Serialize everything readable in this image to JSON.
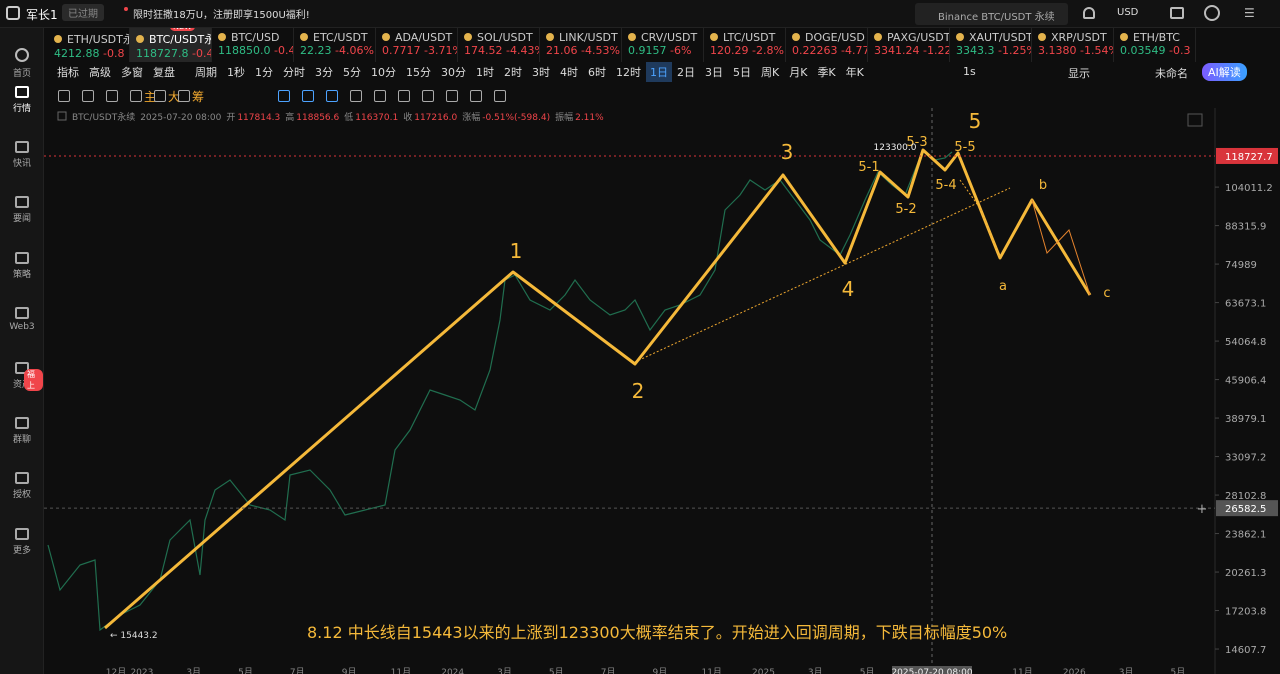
{
  "header": {
    "user": "军长1",
    "status": "已过期",
    "promo": "限时狂撒18万U，注册即享1500U福利!",
    "search": "Binance BTC/USDT 永续",
    "currency": "USD"
  },
  "tickers": [
    {
      "name": "ETH/USDT永",
      "price": "4212.88",
      "change": "-0.8",
      "up": true
    },
    {
      "name": "BTC/USDT永续",
      "price": "118727.8",
      "change": "-0.44%",
      "up": true
    },
    {
      "name": "BTC/USD",
      "price": "118850.0",
      "change": "-0.4",
      "up": true
    },
    {
      "name": "ETC/USDT",
      "price": "22.23",
      "change": "-4.06%",
      "up": true
    },
    {
      "name": "ADA/USDT",
      "price": "0.7717",
      "change": "-3.71%",
      "up": false
    },
    {
      "name": "SOL/USDT",
      "price": "174.52",
      "change": "-4.43%",
      "up": false
    },
    {
      "name": "LINK/USDT",
      "price": "21.06",
      "change": "-4.53%",
      "up": false
    },
    {
      "name": "CRV/USDT",
      "price": "0.9157",
      "change": "-6%",
      "up": true
    },
    {
      "name": "LTC/USDT",
      "price": "120.29",
      "change": "-2.8%",
      "up": false
    },
    {
      "name": "DOGE/USD",
      "price": "0.22263",
      "change": "-4.77",
      "up": false
    },
    {
      "name": "PAXG/USDT",
      "price": "3341.24",
      "change": "-1.22",
      "up": false
    },
    {
      "name": "XAUT/USDT",
      "price": "3343.3",
      "change": "-1.25%",
      "up": true
    },
    {
      "name": "XRP/USDT",
      "price": "3.1380",
      "change": "-1.54%",
      "up": false
    },
    {
      "name": "ETH/BTC",
      "price": "0.03549",
      "change": "-0.3",
      "up": true
    }
  ],
  "active_ticker": 1,
  "new_badge": "NEW",
  "toolbar": {
    "left": [
      "指标",
      "高级",
      "多窗",
      "复盘"
    ],
    "period_label": "周期",
    "periods": [
      "1秒",
      "1分",
      "分时",
      "3分",
      "5分",
      "10分",
      "15分",
      "30分",
      "1时",
      "2时",
      "3时",
      "4时",
      "6时",
      "12时",
      "1日",
      "2日",
      "3日",
      "5日",
      "周K",
      "月K",
      "季K",
      "年K"
    ],
    "active_period": 14,
    "right": [
      "1s",
      "显示",
      "未命名",
      "AI解读"
    ]
  },
  "draw_tools": [
    "主",
    "大",
    "筹"
  ],
  "sidebar": {
    "items": [
      "首页",
      "行情",
      "快讯",
      "要闻",
      "策略",
      "Web3",
      "资产",
      "群聊",
      "授权",
      "更多"
    ],
    "active": 1,
    "badge": "福上"
  },
  "info": [
    "BTC/USDT永续",
    "2025-07-20 08:00",
    "开",
    "117814.3",
    "高",
    "118856.6",
    "低",
    "116370.1",
    "收",
    "117216.0",
    "涨幅",
    "-0.51%(-598.4)",
    "振幅",
    "2.11%"
  ],
  "price_axis": {
    "ylim": [
      13650,
      141300
    ],
    "log": true,
    "ticks": [
      104011.2,
      88315.9,
      74989.0,
      63673.1,
      54064.8,
      45906.4,
      38979.1,
      33097.2,
      28102.8,
      23862.1,
      20261.3,
      17203.8,
      14607.7
    ]
  },
  "last_price": 118727.7,
  "cross_price": 26582.5,
  "cross_time": "2025-07-20 08:00",
  "time_axis": [
    "12月",
    "2023",
    null,
    "3月",
    null,
    "5月",
    null,
    "7月",
    null,
    "9月",
    null,
    "11月",
    null,
    "2024",
    null,
    "3月",
    null,
    "5月",
    null,
    "7月",
    null,
    "9月",
    null,
    "11月",
    null,
    "2025",
    null,
    "3月",
    null,
    "5月",
    null,
    null,
    null,
    null,
    null,
    "11月",
    null,
    "2026",
    null,
    "3月",
    null,
    "5月"
  ],
  "waves": [
    "1",
    "2",
    "3",
    "4",
    "5",
    "5-1",
    "5-2",
    "5-3",
    "5-4",
    "5-5",
    "a",
    "b",
    "c"
  ],
  "peak_label": "123300.0",
  "low_label": "← 15443.2",
  "note": "8.12 中长线自15443以来的上涨到123300大概率结束了。开始进入回调周期，下跌目标幅度50%"
}
